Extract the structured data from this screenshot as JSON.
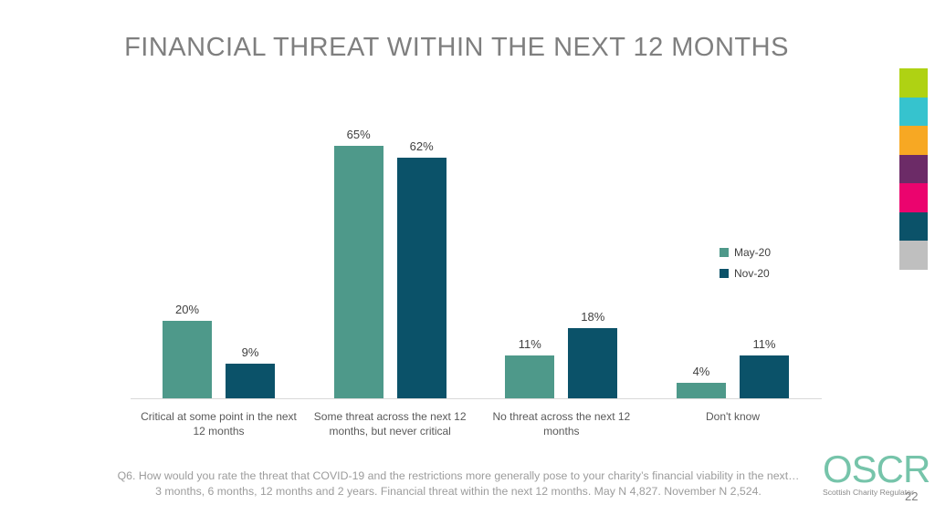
{
  "slide": {
    "title": "FINANCIAL THREAT WITHIN THE NEXT 12 MONTHS",
    "page_number": "22",
    "footnote_line1": "Q6. How would you rate the threat that COVID-19 and the restrictions more generally pose to your charity’s financial viability in the next…",
    "footnote_line2": "3 months, 6 months, 12 months and 2 years. Financial threat within the next 12 months. May N 4,827. November N 2,524.",
    "logo": {
      "text": "OSCR",
      "subtext": "Scottish Charity Regulator",
      "color": "#76C4AA"
    },
    "accent_colors": [
      "#AFD213",
      "#36C3CE",
      "#F7A823",
      "#6C2B67",
      "#EB046E",
      "#0B5269",
      "#BFBFBF"
    ]
  },
  "chart_data": {
    "type": "bar",
    "title": "FINANCIAL THREAT WITHIN THE NEXT 12 MONTHS",
    "categories": [
      "Critical at some point in the next 12 months",
      "Some threat across the next 12 months, but never critical",
      "No threat across the next 12 months",
      "Don't know"
    ],
    "category_lines": [
      [
        "Critical at some point in the next",
        "12 months"
      ],
      [
        "Some threat across the next 12",
        "months, but never critical"
      ],
      [
        "No threat across the next 12",
        "months"
      ],
      [
        "Don't know"
      ]
    ],
    "series": [
      {
        "name": "May-20",
        "color": "#4E998A",
        "values": [
          20,
          65,
          11,
          4
        ]
      },
      {
        "name": "Nov-20",
        "color": "#0B5269",
        "values": [
          9,
          62,
          18,
          11
        ]
      }
    ],
    "value_suffix": "%",
    "ylim": [
      0,
      70
    ],
    "gridlines": false,
    "data_labels": true,
    "legend_position": "right"
  }
}
